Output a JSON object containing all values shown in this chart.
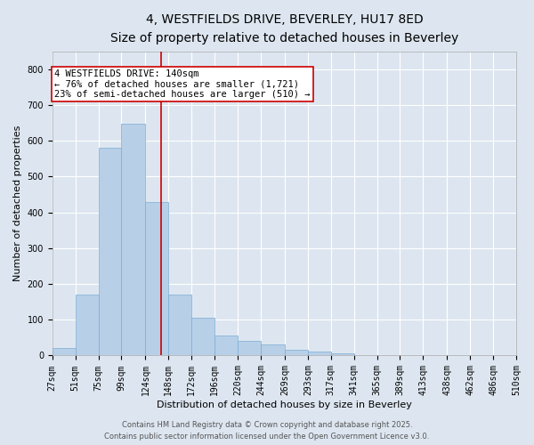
{
  "title1": "4, WESTFIELDS DRIVE, BEVERLEY, HU17 8ED",
  "title2": "Size of property relative to detached houses in Beverley",
  "xlabel": "Distribution of detached houses by size in Beverley",
  "ylabel": "Number of detached properties",
  "bar_color": "#b8cfe8",
  "bar_edgecolor": "#7aadd4",
  "background_color": "#dde6f0",
  "grid_color": "#ffffff",
  "bins_labels": [
    "27sqm",
    "51sqm",
    "75sqm",
    "99sqm",
    "124sqm",
    "148sqm",
    "172sqm",
    "196sqm",
    "220sqm",
    "244sqm",
    "269sqm",
    "293sqm",
    "317sqm",
    "341sqm",
    "365sqm",
    "389sqm",
    "413sqm",
    "438sqm",
    "462sqm",
    "486sqm",
    "510sqm"
  ],
  "bin_edges": [
    27,
    51,
    75,
    99,
    124,
    148,
    172,
    196,
    220,
    244,
    269,
    293,
    317,
    341,
    365,
    389,
    413,
    438,
    462,
    486,
    510
  ],
  "bar_heights": [
    20,
    170,
    580,
    648,
    430,
    170,
    105,
    55,
    40,
    30,
    15,
    10,
    5,
    2,
    1,
    1,
    0,
    0,
    0,
    0,
    5
  ],
  "property_size": 140,
  "vline_color": "#cc0000",
  "annotation_text": "4 WESTFIELDS DRIVE: 140sqm\n← 76% of detached houses are smaller (1,721)\n23% of semi-detached houses are larger (510) →",
  "annotation_box_color": "#cc0000",
  "ylim": [
    0,
    850
  ],
  "yticks": [
    0,
    100,
    200,
    300,
    400,
    500,
    600,
    700,
    800
  ],
  "footer1": "Contains HM Land Registry data © Crown copyright and database right 2025.",
  "footer2": "Contains public sector information licensed under the Open Government Licence v3.0.",
  "title_fontsize": 10,
  "subtitle_fontsize": 9,
  "axis_label_fontsize": 8,
  "tick_fontsize": 7,
  "annotation_fontsize": 7.5,
  "footer_fontsize": 6
}
